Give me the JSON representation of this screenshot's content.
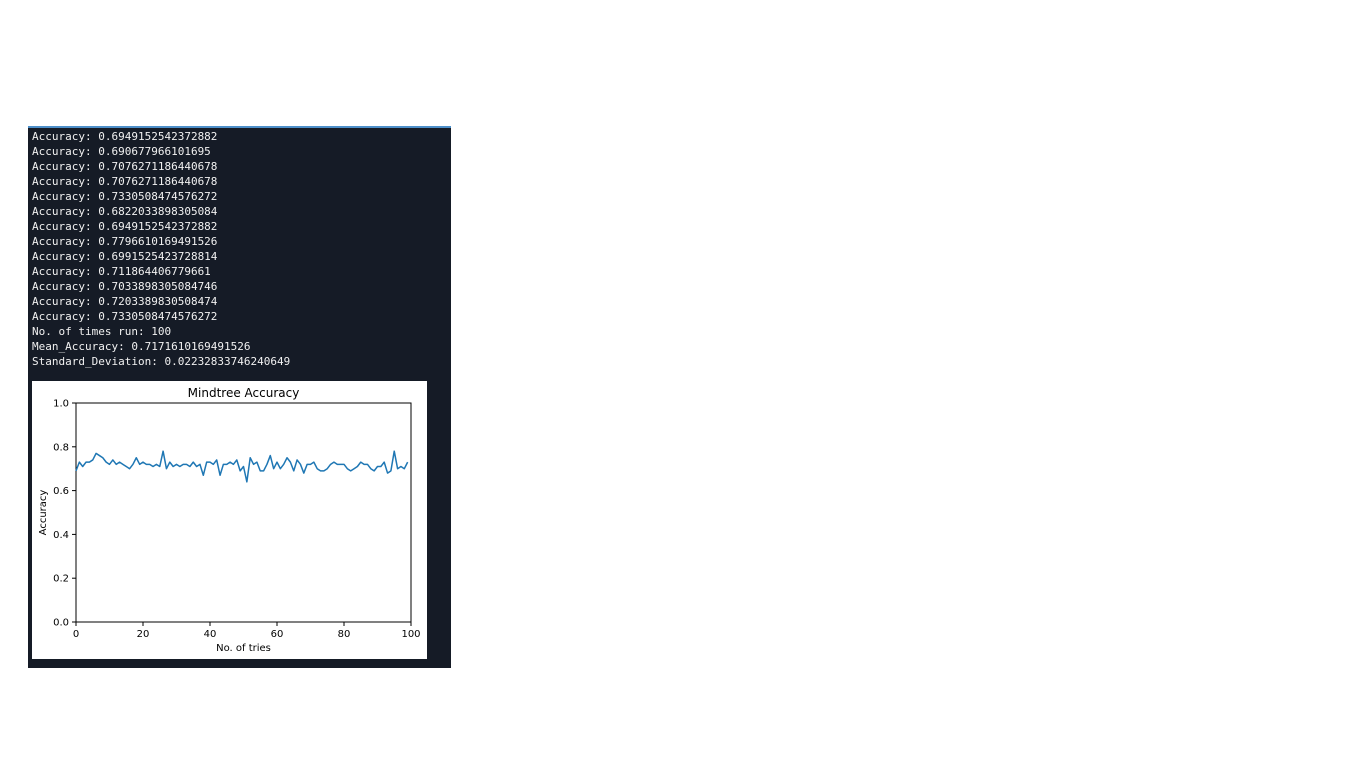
{
  "console": {
    "lines": [
      "Accuracy: 0.6949152542372882",
      "Accuracy: 0.690677966101695",
      "Accuracy: 0.7076271186440678",
      "Accuracy: 0.7076271186440678",
      "Accuracy: 0.7330508474576272",
      "Accuracy: 0.6822033898305084",
      "Accuracy: 0.6949152542372882",
      "Accuracy: 0.7796610169491526",
      "Accuracy: 0.6991525423728814",
      "Accuracy: 0.711864406779661",
      "Accuracy: 0.7033898305084746",
      "Accuracy: 0.7203389830508474",
      "Accuracy: 0.7330508474576272",
      "No. of times run: 100",
      "Mean_Accuracy: 0.7171610169491526",
      "Standard_Deviation: 0.02232833746240649"
    ]
  },
  "colors": {
    "panel_background": "#151b26",
    "panel_accent": "#4d8fc9",
    "console_text": "#f1f1f1",
    "series_line": "#1f77b4"
  },
  "chart_data": {
    "type": "line",
    "title": "Mindtree Accuracy",
    "xlabel": "No. of tries",
    "ylabel": "Accuracy",
    "xlim": [
      0,
      100
    ],
    "ylim": [
      0,
      1.0
    ],
    "xticks": [
      0,
      20,
      40,
      60,
      80,
      100
    ],
    "xtick_labels": [
      "0",
      "20",
      "40",
      "60",
      "80",
      "100"
    ],
    "yticks": [
      0.0,
      0.2,
      0.4,
      0.6,
      0.8,
      1.0
    ],
    "ytick_labels": [
      "0.0",
      "0.2",
      "0.4",
      "0.6",
      "0.8",
      "1.0"
    ],
    "grid": false,
    "series": [
      {
        "name": "Accuracy",
        "x": [
          0,
          1,
          2,
          3,
          4,
          5,
          6,
          7,
          8,
          9,
          10,
          11,
          12,
          13,
          14,
          15,
          16,
          17,
          18,
          19,
          20,
          21,
          22,
          23,
          24,
          25,
          26,
          27,
          28,
          29,
          30,
          31,
          32,
          33,
          34,
          35,
          36,
          37,
          38,
          39,
          40,
          41,
          42,
          43,
          44,
          45,
          46,
          47,
          48,
          49,
          50,
          51,
          52,
          53,
          54,
          55,
          56,
          57,
          58,
          59,
          60,
          61,
          62,
          63,
          64,
          65,
          66,
          67,
          68,
          69,
          70,
          71,
          72,
          73,
          74,
          75,
          76,
          77,
          78,
          79,
          80,
          81,
          82,
          83,
          84,
          85,
          86,
          87,
          88,
          89,
          90,
          91,
          92,
          93,
          94,
          95,
          96,
          97,
          98,
          99
        ],
        "values": [
          0.69,
          0.73,
          0.71,
          0.73,
          0.73,
          0.74,
          0.77,
          0.76,
          0.75,
          0.73,
          0.72,
          0.74,
          0.72,
          0.73,
          0.72,
          0.71,
          0.7,
          0.72,
          0.75,
          0.72,
          0.73,
          0.72,
          0.72,
          0.71,
          0.72,
          0.71,
          0.78,
          0.7,
          0.73,
          0.71,
          0.72,
          0.71,
          0.72,
          0.72,
          0.71,
          0.73,
          0.71,
          0.72,
          0.67,
          0.73,
          0.73,
          0.72,
          0.74,
          0.67,
          0.72,
          0.72,
          0.73,
          0.72,
          0.74,
          0.69,
          0.71,
          0.64,
          0.75,
          0.72,
          0.73,
          0.69,
          0.69,
          0.72,
          0.76,
          0.7,
          0.73,
          0.7,
          0.72,
          0.75,
          0.73,
          0.69,
          0.74,
          0.72,
          0.68,
          0.72,
          0.72,
          0.73,
          0.7,
          0.69,
          0.69,
          0.7,
          0.72,
          0.73,
          0.72,
          0.72,
          0.72,
          0.7,
          0.69,
          0.7,
          0.71,
          0.73,
          0.72,
          0.72,
          0.7,
          0.69,
          0.71,
          0.71,
          0.73,
          0.68,
          0.69,
          0.78,
          0.7,
          0.71,
          0.7,
          0.73
        ]
      }
    ]
  }
}
